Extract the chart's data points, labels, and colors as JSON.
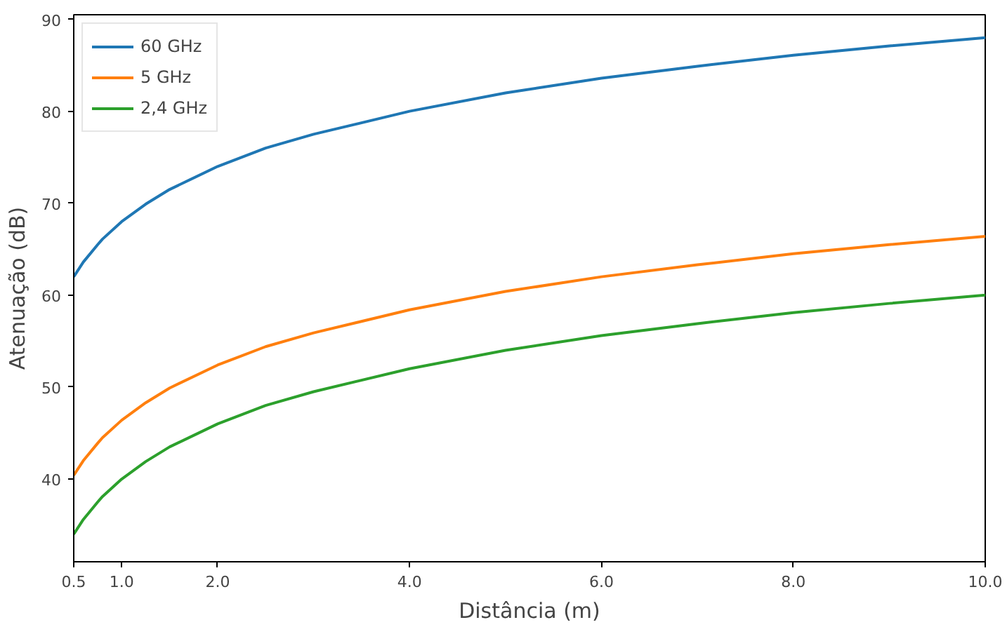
{
  "chart_data": {
    "type": "line",
    "xlabel": "Distância (m)",
    "ylabel": "Atenuação (dB)",
    "x": [
      0.5,
      0.6,
      0.75,
      0.8,
      1,
      1.25,
      1.5,
      2,
      2.5,
      3,
      4,
      5,
      6,
      7,
      8,
      9,
      10
    ],
    "series": [
      {
        "name": "60 GHz",
        "color": "#1f77b4",
        "values": [
          62.0,
          63.6,
          65.5,
          66.1,
          68.0,
          69.9,
          71.5,
          74.0,
          76.0,
          77.5,
          80.0,
          82.0,
          83.6,
          84.9,
          86.1,
          87.1,
          88.0
        ]
      },
      {
        "name": "5 GHz",
        "color": "#ff7f0e",
        "values": [
          40.4,
          42.0,
          43.9,
          44.5,
          46.4,
          48.3,
          49.9,
          52.4,
          54.4,
          55.9,
          58.4,
          60.4,
          62.0,
          63.3,
          64.5,
          65.5,
          66.4
        ]
      },
      {
        "name": "2,4 GHz",
        "color": "#2ca02c",
        "values": [
          34.0,
          35.6,
          37.5,
          38.1,
          40.0,
          41.9,
          43.5,
          46.0,
          48.0,
          49.5,
          52.0,
          54.0,
          55.6,
          56.9,
          58.1,
          59.1,
          60.0
        ]
      }
    ],
    "xlim": [
      0.5,
      10
    ],
    "ylim": [
      31,
      90.5
    ],
    "xticks": [
      {
        "value": 0.5,
        "label": "0.5"
      },
      {
        "value": 1,
        "label": "1.0"
      },
      {
        "value": 2,
        "label": "2.0"
      },
      {
        "value": 4,
        "label": "4.0"
      },
      {
        "value": 6,
        "label": "6.0"
      },
      {
        "value": 8,
        "label": "8.0"
      },
      {
        "value": 10,
        "label": "10.0"
      }
    ],
    "yticks": [
      40,
      50,
      60,
      70,
      80,
      90
    ],
    "grid": false,
    "legend": "top left",
    "marker": "none",
    "line_style": "solid"
  }
}
